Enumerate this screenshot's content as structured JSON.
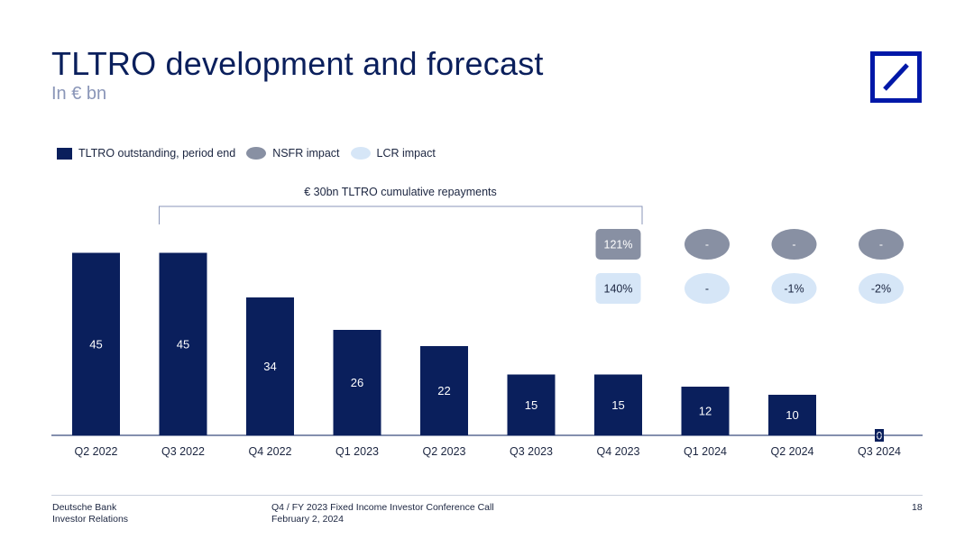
{
  "header": {
    "title": "TLTRO development and forecast",
    "subtitle": "In € bn"
  },
  "logo": {
    "name": "deutsche-bank-logo",
    "color": "#0018a8"
  },
  "legend": [
    {
      "label": "TLTRO outstanding, period end",
      "color": "#0a1f5c",
      "shape": "rect"
    },
    {
      "label": "NSFR impact",
      "color": "#8890a3",
      "shape": "oval"
    },
    {
      "label": "LCR impact",
      "color": "#d6e6f7",
      "shape": "oval"
    }
  ],
  "annotation": {
    "text": "€ 30bn TLTRO cumulative repayments",
    "from_category": "Q3 2022",
    "to_category": "Q4 2023"
  },
  "chart_data": {
    "type": "bar",
    "title": "TLTRO development and forecast",
    "ylabel": "",
    "xlabel": "",
    "categories": [
      "Q2 2022",
      "Q3 2022",
      "Q4 2022",
      "Q1 2023",
      "Q2 2023",
      "Q3 2023",
      "Q4 2023",
      "Q1 2024",
      "Q2 2024",
      "Q3 2024"
    ],
    "series": [
      {
        "name": "TLTRO outstanding, period end",
        "values": [
          45,
          45,
          34,
          26,
          22,
          15,
          15,
          12,
          10,
          0
        ]
      }
    ],
    "ylim": [
      0,
      50
    ],
    "grid": false,
    "legend_position": "top-left",
    "colors": {
      "bar": "#0a1f5c",
      "nsfr": "#8890a3",
      "lcr": "#d6e6f7"
    },
    "impacts": [
      {
        "category": "Q4 2023",
        "nsfr": "121%",
        "lcr": "140%",
        "style": "rounded-rect"
      },
      {
        "category": "Q1 2024",
        "nsfr": "-",
        "lcr": "-",
        "style": "oval"
      },
      {
        "category": "Q2 2024",
        "nsfr": "-",
        "lcr": "-1%",
        "style": "oval"
      },
      {
        "category": "Q3 2024",
        "nsfr": "-",
        "lcr": "-2%",
        "style": "oval"
      }
    ]
  },
  "footer": {
    "company": "Deutsche Bank",
    "department": "Investor Relations",
    "event": "Q4 / FY 2023 Fixed Income Investor Conference Call",
    "date": "February 2, 2024",
    "page": "18"
  }
}
